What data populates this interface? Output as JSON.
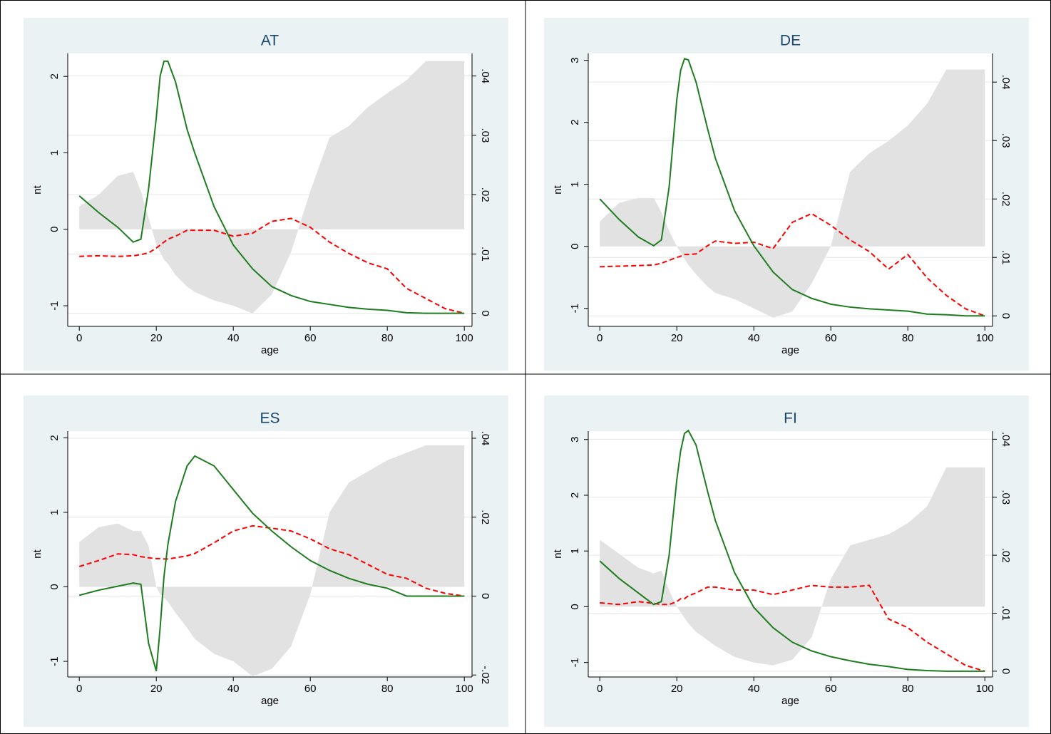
{
  "chart_data": [
    {
      "type": "line",
      "title": "AT",
      "xlabel": "age",
      "ylabel": "nt",
      "grid": true,
      "x": [
        0,
        5,
        10,
        14,
        16,
        18,
        20,
        21,
        22,
        23,
        25,
        28,
        30,
        35,
        40,
        45,
        50,
        55,
        60,
        65,
        70,
        75,
        80,
        85,
        90,
        95,
        100
      ],
      "xlim": [
        -3,
        102
      ],
      "xticks": [
        0,
        20,
        40,
        60,
        80,
        100
      ],
      "ylim": [
        -1.27,
        2.3
      ],
      "yticks": [
        -1,
        0,
        1,
        2
      ],
      "y2lim": [
        -0.0022,
        0.0438
      ],
      "y2ticks": [
        {
          "value": 0,
          "label": "0"
        },
        {
          "value": 0.01,
          "label": ".01"
        },
        {
          "value": 0.02,
          "label": ".02"
        },
        {
          "value": 0.03,
          "label": ".03"
        },
        {
          "value": 0.04,
          "label": ".04"
        }
      ],
      "series": [
        {
          "color": "#e2e2e2",
          "fill": true,
          "axis": "y",
          "values": [
            0.3,
            0.45,
            0.7,
            0.75,
            0.5,
            0.15,
            -0.2,
            -0.3,
            -0.4,
            -0.45,
            -0.6,
            -0.75,
            -0.82,
            -0.93,
            -1.0,
            -1.1,
            -0.85,
            -0.3,
            0.5,
            1.2,
            1.35,
            1.6,
            1.78,
            1.95,
            2.2,
            2.2,
            2.2
          ]
        },
        {
          "color": "#ff0000",
          "dashed": true,
          "axis": "y2",
          "values": [
            0.0096,
            0.0097,
            0.0096,
            0.0097,
            0.0099,
            0.0102,
            0.011,
            0.0115,
            0.012,
            0.0125,
            0.013,
            0.014,
            0.014,
            0.014,
            0.013,
            0.0135,
            0.0155,
            0.016,
            0.0145,
            0.012,
            0.0101,
            0.0085,
            0.0075,
            0.0042,
            0.0025,
            0.0008,
            0
          ]
        },
        {
          "color": "#1e7d1e",
          "axis": "y2",
          "values": [
            0.0198,
            0.017,
            0.0145,
            0.012,
            0.0125,
            0.021,
            0.033,
            0.04,
            0.0425,
            0.0425,
            0.039,
            0.031,
            0.027,
            0.018,
            0.0115,
            0.0075,
            0.0045,
            0.003,
            0.002,
            0.0015,
            0.001,
            0.0007,
            0.0005,
            0.0001,
            0,
            0,
            0
          ]
        }
      ]
    },
    {
      "type": "line",
      "title": "DE",
      "xlabel": "age",
      "ylabel": "nt",
      "grid": true,
      "x": [
        0,
        5,
        10,
        14,
        16,
        18,
        20,
        21,
        22,
        23,
        25,
        28,
        30,
        35,
        40,
        45,
        50,
        55,
        60,
        65,
        70,
        75,
        80,
        85,
        90,
        95,
        100
      ],
      "xlim": [
        -3,
        102
      ],
      "xticks": [
        0,
        20,
        40,
        60,
        80,
        100
      ],
      "ylim": [
        -1.29,
        3.11
      ],
      "yticks": [
        -1,
        0,
        1,
        2,
        3
      ],
      "y2lim": [
        -0.0018,
        0.0449
      ],
      "y2ticks": [
        {
          "value": 0,
          "label": "0"
        },
        {
          "value": 0.01,
          "label": ".01"
        },
        {
          "value": 0.02,
          "label": ".02"
        },
        {
          "value": 0.03,
          "label": ".03"
        },
        {
          "value": 0.04,
          "label": ".04"
        }
      ],
      "series": [
        {
          "color": "#e2e2e2",
          "fill": true,
          "axis": "y",
          "values": [
            0.4,
            0.7,
            0.78,
            0.78,
            0.55,
            0.25,
            0.0,
            -0.1,
            -0.2,
            -0.3,
            -0.45,
            -0.65,
            -0.75,
            -0.85,
            -1.0,
            -1.15,
            -1.05,
            -0.6,
            0.0,
            1.2,
            1.5,
            1.7,
            1.95,
            2.3,
            2.85,
            2.85,
            2.85
          ]
        },
        {
          "color": "#ff0000",
          "dashed": true,
          "axis": "y2",
          "values": [
            0.0084,
            0.0085,
            0.0086,
            0.0087,
            0.009,
            0.0095,
            0.01,
            0.0102,
            0.0105,
            0.0105,
            0.0106,
            0.012,
            0.0128,
            0.0124,
            0.0126,
            0.0115,
            0.016,
            0.0175,
            0.0155,
            0.013,
            0.011,
            0.008,
            0.0105,
            0.0065,
            0.0035,
            0.0012,
            0
          ]
        },
        {
          "color": "#1e7d1e",
          "axis": "y2",
          "values": [
            0.02,
            0.0165,
            0.0135,
            0.012,
            0.013,
            0.022,
            0.037,
            0.042,
            0.044,
            0.0438,
            0.04,
            0.032,
            0.027,
            0.018,
            0.012,
            0.0075,
            0.0045,
            0.003,
            0.002,
            0.0015,
            0.0012,
            0.001,
            0.0008,
            0.0003,
            0.0002,
            0,
            0
          ]
        }
      ]
    },
    {
      "type": "line",
      "title": "ES",
      "xlabel": "age",
      "ylabel": "nt",
      "grid": true,
      "x": [
        0,
        5,
        10,
        14,
        16,
        18,
        20,
        21,
        22,
        23,
        25,
        28,
        30,
        35,
        40,
        45,
        50,
        55,
        60,
        65,
        70,
        75,
        80,
        85,
        90,
        95,
        100
      ],
      "xlim": [
        -3,
        102
      ],
      "xticks": [
        0,
        20,
        40,
        60,
        80,
        100
      ],
      "ylim": [
        -1.21,
        2.09
      ],
      "yticks": [
        -1,
        0,
        1,
        2
      ],
      "y2lim": [
        -0.0205,
        0.0418
      ],
      "y2ticks": [
        {
          "value": -0.02,
          "label": "-.02"
        },
        {
          "value": 0,
          "label": "0"
        },
        {
          "value": 0.02,
          "label": ".02"
        },
        {
          "value": 0.04,
          "label": ".04"
        }
      ],
      "series": [
        {
          "color": "#e2e2e2",
          "fill": true,
          "axis": "y",
          "values": [
            0.6,
            0.8,
            0.85,
            0.75,
            0.75,
            0.55,
            0.0,
            -0.1,
            -0.15,
            -0.2,
            -0.35,
            -0.55,
            -0.7,
            -0.9,
            -1.0,
            -1.2,
            -1.1,
            -0.8,
            -0.1,
            1.0,
            1.4,
            1.55,
            1.7,
            1.8,
            1.9,
            1.9,
            1.9
          ]
        },
        {
          "color": "#ff0000",
          "dashed": true,
          "axis": "y2",
          "values": [
            0.0075,
            0.009,
            0.0107,
            0.0105,
            0.01,
            0.0097,
            0.0095,
            0.0095,
            0.0094,
            0.0094,
            0.0097,
            0.0102,
            0.0108,
            0.0135,
            0.0165,
            0.0178,
            0.0172,
            0.0165,
            0.0145,
            0.012,
            0.0105,
            0.008,
            0.0055,
            0.0045,
            0.002,
            0.0007,
            0
          ]
        },
        {
          "color": "#1e7d1e",
          "axis": "y2",
          "values": [
            0.0002,
            0.0015,
            0.0025,
            0.0033,
            0.003,
            -0.012,
            -0.019,
            -0.008,
            0.005,
            0.013,
            0.024,
            0.033,
            0.0355,
            0.033,
            0.027,
            0.021,
            0.0165,
            0.0125,
            0.009,
            0.0065,
            0.0045,
            0.003,
            0.002,
            0,
            0,
            0,
            0
          ]
        }
      ]
    },
    {
      "type": "line",
      "title": "FI",
      "xlabel": "age",
      "ylabel": "nt",
      "grid": true,
      "x": [
        0,
        5,
        10,
        14,
        16,
        18,
        20,
        21,
        22,
        23,
        25,
        28,
        30,
        35,
        40,
        45,
        50,
        55,
        60,
        65,
        70,
        75,
        80,
        85,
        90,
        95,
        100
      ],
      "xlim": [
        -3,
        102
      ],
      "xticks": [
        0,
        20,
        40,
        60,
        80,
        100
      ],
      "ylim": [
        -1.26,
        3.15
      ],
      "yticks": [
        -1,
        0,
        1,
        2,
        3
      ],
      "y2lim": [
        -0.001,
        0.0414
      ],
      "y2ticks": [
        {
          "value": 0,
          "label": "0"
        },
        {
          "value": 0.01,
          "label": ".01"
        },
        {
          "value": 0.02,
          "label": ".02"
        },
        {
          "value": 0.03,
          "label": ".03"
        },
        {
          "value": 0.04,
          "label": ".04"
        }
      ],
      "series": [
        {
          "color": "#e2e2e2",
          "fill": true,
          "axis": "y",
          "values": [
            1.2,
            0.95,
            0.7,
            0.6,
            0.65,
            0.3,
            0.0,
            -0.1,
            -0.2,
            -0.3,
            -0.45,
            -0.6,
            -0.7,
            -0.9,
            -1.0,
            -1.05,
            -0.95,
            -0.55,
            0.5,
            1.1,
            1.2,
            1.3,
            1.5,
            1.8,
            2.5,
            2.5,
            2.5
          ]
        },
        {
          "color": "#ff0000",
          "dashed": true,
          "axis": "y2",
          "values": [
            0.0118,
            0.0115,
            0.012,
            0.0117,
            0.0115,
            0.0115,
            0.012,
            0.0125,
            0.0125,
            0.013,
            0.0135,
            0.0145,
            0.0145,
            0.014,
            0.014,
            0.0132,
            0.014,
            0.0148,
            0.0145,
            0.0145,
            0.0148,
            0.009,
            0.0075,
            0.005,
            0.003,
            0.001,
            0
          ]
        },
        {
          "color": "#1e7d1e",
          "axis": "y2",
          "values": [
            0.019,
            0.016,
            0.0135,
            0.0115,
            0.012,
            0.02,
            0.033,
            0.038,
            0.041,
            0.0415,
            0.039,
            0.031,
            0.026,
            0.017,
            0.011,
            0.0075,
            0.005,
            0.0035,
            0.0025,
            0.0018,
            0.0012,
            0.0008,
            0.0003,
            0.0001,
            0,
            0,
            0
          ]
        }
      ]
    }
  ]
}
